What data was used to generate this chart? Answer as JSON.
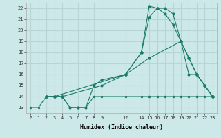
{
  "xlabel": "Humidex (Indice chaleur)",
  "bg_color": "#cde8e8",
  "grid_color": "#b8d4d4",
  "line_color": "#1a7a6a",
  "xlim": [
    -0.5,
    23.5
  ],
  "ylim": [
    12.5,
    22.5
  ],
  "xticks": [
    0,
    1,
    2,
    3,
    4,
    5,
    6,
    7,
    8,
    9,
    12,
    14,
    15,
    16,
    17,
    18,
    19,
    20,
    21,
    22,
    23
  ],
  "yticks": [
    13,
    14,
    15,
    16,
    17,
    18,
    19,
    20,
    21,
    22
  ],
  "line1_flat": {
    "x": [
      0,
      1,
      2,
      3,
      4,
      5,
      6,
      7,
      8,
      9,
      12,
      14,
      15,
      16,
      17,
      18,
      19,
      20,
      21,
      22,
      23
    ],
    "y": [
      13,
      13,
      14,
      14,
      14,
      13,
      13,
      13,
      14,
      14,
      14,
      14,
      14,
      14,
      14,
      14,
      14,
      14,
      14,
      14,
      14
    ]
  },
  "line2": {
    "x": [
      2,
      3,
      4,
      5,
      6,
      7,
      8,
      9,
      12,
      14,
      15,
      16,
      17,
      18,
      19,
      20,
      21,
      22,
      23
    ],
    "y": [
      14,
      14,
      14,
      13,
      13,
      13,
      15,
      15.5,
      16,
      18,
      21.2,
      22,
      22,
      21.5,
      19,
      17.5,
      16,
      15,
      14
    ]
  },
  "line3": {
    "x": [
      2,
      3,
      4,
      9,
      12,
      14,
      15,
      16,
      17,
      18,
      19,
      20,
      21,
      22,
      23
    ],
    "y": [
      14,
      14,
      14,
      15,
      16,
      18,
      22.2,
      22,
      21.5,
      20.5,
      19,
      17.5,
      16,
      15,
      14
    ]
  },
  "line4": {
    "x": [
      2,
      3,
      12,
      15,
      19,
      20,
      21,
      22,
      23
    ],
    "y": [
      14,
      14,
      16,
      17.5,
      19,
      16,
      16,
      15,
      14
    ]
  }
}
